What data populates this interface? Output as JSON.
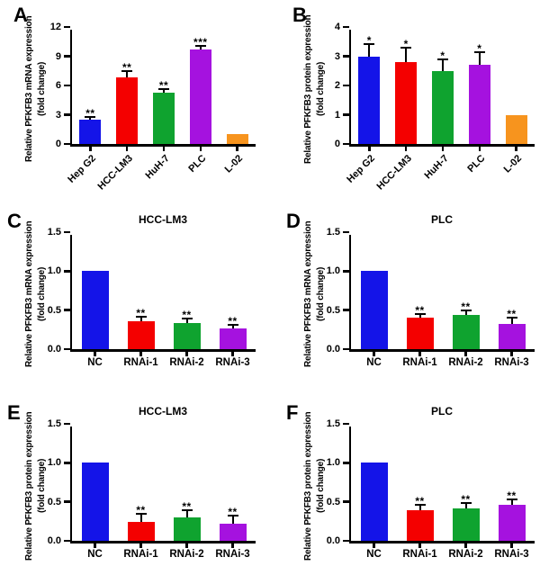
{
  "figure_title": "PFKFB3 expression bar chart figure",
  "colors": {
    "blue": "#1414E8",
    "red": "#F40000",
    "green": "#0FA32F",
    "purple": "#A512DF",
    "orange": "#F7941E",
    "axis": "#000000",
    "background": "#FFFFFF"
  },
  "chart_data": [
    {
      "panel": "A",
      "type": "bar",
      "title": "",
      "ylabel": "Relative PFKFB3 mRNA expression",
      "ylabel2": "(fold change)",
      "xlabel": "",
      "categories": [
        "Hep G2",
        "HCC-LM3",
        "HuH-7",
        "PLC",
        "L-02"
      ],
      "values": [
        2.5,
        6.8,
        5.3,
        9.7,
        1.0
      ],
      "errors": [
        0.2,
        0.6,
        0.25,
        0.3,
        0
      ],
      "sig": [
        "**",
        "**",
        "**",
        "***",
        ""
      ],
      "colors": [
        "#1414E8",
        "#F40000",
        "#0FA32F",
        "#A512DF",
        "#F7941E"
      ],
      "ylim": [
        0,
        12
      ],
      "yticks": [
        0,
        3,
        6,
        9,
        12
      ],
      "ytick_labels": [
        "0",
        "3",
        "6",
        "9",
        "12"
      ],
      "x_labels_rotated": true,
      "grid": false,
      "legend": "none"
    },
    {
      "panel": "B",
      "type": "bar",
      "title": "",
      "ylabel": "Relative PFKFB3 protein expression",
      "ylabel2": "(fold change)",
      "xlabel": "",
      "categories": [
        "Hep G2",
        "HCC-LM3",
        "HuH-7",
        "PLC",
        "L-02"
      ],
      "values": [
        3.0,
        2.8,
        2.5,
        2.7,
        1.0
      ],
      "errors": [
        0.4,
        0.45,
        0.35,
        0.4,
        0
      ],
      "sig": [
        "*",
        "*",
        "*",
        "*",
        ""
      ],
      "colors": [
        "#1414E8",
        "#F40000",
        "#0FA32F",
        "#A512DF",
        "#F7941E"
      ],
      "ylim": [
        0,
        4
      ],
      "yticks": [
        0,
        1,
        2,
        3,
        4
      ],
      "ytick_labels": [
        "0",
        "1",
        "2",
        "3",
        "4"
      ],
      "x_labels_rotated": true,
      "grid": false,
      "legend": "none"
    },
    {
      "panel": "C",
      "type": "bar",
      "title": "HCC-LM3",
      "ylabel": "Relative PFKFB3 mRNA expression",
      "ylabel2": "(fold change)",
      "xlabel": "",
      "categories": [
        "NC",
        "RNAi-1",
        "RNAi-2",
        "RNAi-3"
      ],
      "values": [
        1.0,
        0.36,
        0.33,
        0.26
      ],
      "errors": [
        0,
        0.04,
        0.05,
        0.04
      ],
      "sig": [
        "",
        "**",
        "**",
        "**"
      ],
      "colors": [
        "#1414E8",
        "#F40000",
        "#0FA32F",
        "#A512DF"
      ],
      "ylim": [
        0,
        1.5
      ],
      "yticks": [
        0,
        0.5,
        1.0,
        1.5
      ],
      "ytick_labels": [
        "0.0",
        "0.5",
        "1.0",
        "1.5"
      ],
      "x_labels_rotated": false,
      "grid": false,
      "legend": "none"
    },
    {
      "panel": "D",
      "type": "bar",
      "title": "PLC",
      "ylabel": "Relative PFKFB3 mRNA expression",
      "ylabel2": "(fold change)",
      "xlabel": "",
      "categories": [
        "NC",
        "RNAi-1",
        "RNAi-2",
        "RNAi-3"
      ],
      "values": [
        1.0,
        0.4,
        0.44,
        0.32
      ],
      "errors": [
        0,
        0.04,
        0.04,
        0.07
      ],
      "sig": [
        "",
        "**",
        "**",
        "**"
      ],
      "colors": [
        "#1414E8",
        "#F40000",
        "#0FA32F",
        "#A512DF"
      ],
      "ylim": [
        0,
        1.5
      ],
      "yticks": [
        0,
        0.5,
        1.0,
        1.5
      ],
      "ytick_labels": [
        "0.0",
        "0.5",
        "1.0",
        "1.5"
      ],
      "x_labels_rotated": false,
      "grid": false,
      "legend": "none"
    },
    {
      "panel": "E",
      "type": "bar",
      "title": "HCC-LM3",
      "ylabel": "Relative PFKFB3 protein expression",
      "ylabel2": "(fold change)",
      "xlabel": "",
      "categories": [
        "NC",
        "RNAi-1",
        "RNAi-2",
        "RNAi-3"
      ],
      "values": [
        1.0,
        0.24,
        0.3,
        0.22
      ],
      "errors": [
        0,
        0.1,
        0.08,
        0.09
      ],
      "sig": [
        "",
        "**",
        "**",
        "**"
      ],
      "colors": [
        "#1414E8",
        "#F40000",
        "#0FA32F",
        "#A512DF"
      ],
      "ylim": [
        0,
        1.5
      ],
      "yticks": [
        0,
        0.5,
        1.0,
        1.5
      ],
      "ytick_labels": [
        "0.0",
        "0.5",
        "1.0",
        "1.5"
      ],
      "x_labels_rotated": false,
      "grid": false,
      "legend": "none"
    },
    {
      "panel": "F",
      "type": "bar",
      "title": "PLC",
      "ylabel": "Relative PFKFB3 protein expression",
      "ylabel2": "(fold change)",
      "xlabel": "",
      "categories": [
        "NC",
        "RNAi-1",
        "RNAi-2",
        "RNAi-3"
      ],
      "values": [
        1.0,
        0.39,
        0.41,
        0.46
      ],
      "errors": [
        0,
        0.06,
        0.06,
        0.06
      ],
      "sig": [
        "",
        "**",
        "**",
        "**"
      ],
      "colors": [
        "#1414E8",
        "#F40000",
        "#0FA32F",
        "#A512DF"
      ],
      "ylim": [
        0,
        1.5
      ],
      "yticks": [
        0,
        0.5,
        1.0,
        1.5
      ],
      "ytick_labels": [
        "0.0",
        "0.5",
        "1.0",
        "1.5"
      ],
      "x_labels_rotated": false,
      "grid": false,
      "legend": "none"
    }
  ]
}
